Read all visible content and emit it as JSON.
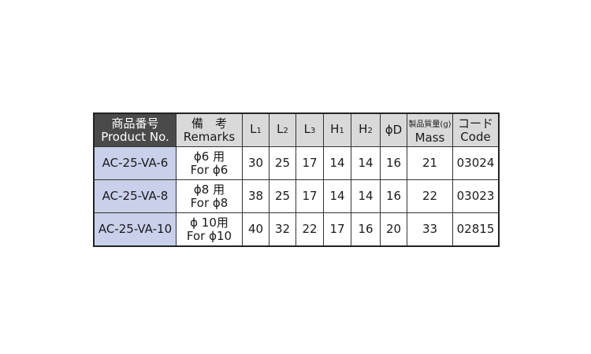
{
  "headers": {
    "product_ja": "商品番号",
    "product_en": "Product No.",
    "remarks_ja": "備　考",
    "remarks_en": "Remarks",
    "l1": "L",
    "l1s": "1",
    "l2": "L",
    "l2s": "2",
    "l3": "L",
    "l3s": "3",
    "h1": "H",
    "h1s": "1",
    "h2": "H",
    "h2s": "2",
    "d": "ϕD",
    "mass_ja": "製品質量(g)",
    "mass_en": "Mass",
    "code_ja": "コード",
    "code_en": "Code"
  },
  "rows": [
    {
      "product": "AC-25-VA-6",
      "remarks_ja": "ϕ6 用",
      "remarks_en": "For ϕ6",
      "l1": "30",
      "l2": "25",
      "l3": "17",
      "h1": "14",
      "h2": "14",
      "d": "16",
      "mass": "21",
      "code": "03024"
    },
    {
      "product": "AC-25-VA-8",
      "remarks_ja": "ϕ8 用",
      "remarks_en": "For ϕ8",
      "l1": "38",
      "l2": "25",
      "l3": "17",
      "h1": "14",
      "h2": "14",
      "d": "16",
      "mass": "22",
      "code": "03023"
    },
    {
      "product": "AC-25-VA-10",
      "remarks_ja": "ϕ 10用",
      "remarks_en": "For ϕ10",
      "l1": "40",
      "l2": "32",
      "l3": "22",
      "h1": "17",
      "h2": "16",
      "d": "20",
      "mass": "33",
      "code": "02815"
    }
  ]
}
